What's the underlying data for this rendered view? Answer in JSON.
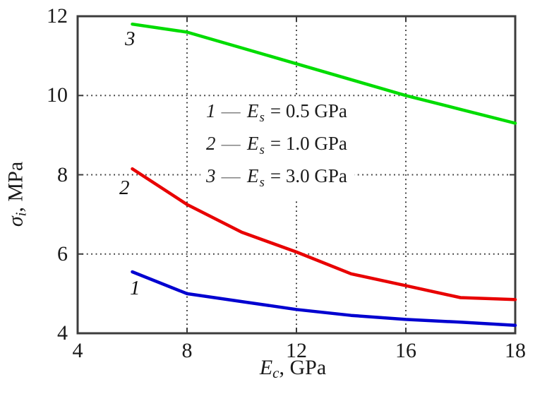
{
  "chart_data": {
    "type": "line",
    "title": "",
    "xlabel_parts": {
      "var": "E",
      "sub": "c",
      "rest": ", GPa"
    },
    "ylabel_parts": {
      "var": "σ",
      "sub": "i",
      "rest": ", MPa"
    },
    "x_ticks": [
      4,
      8,
      12,
      16,
      18
    ],
    "y_ticks": [
      4,
      6,
      8,
      10,
      12
    ],
    "x_gridlines": [
      8,
      12,
      16
    ],
    "y_gridlines": [
      6,
      8,
      10
    ],
    "ylim": [
      4,
      12
    ],
    "axis_layout": {
      "x_ticks_evenly_spaced": true,
      "grid": "dotted",
      "legend_position": "inside-center"
    },
    "x": [
      6,
      8,
      10,
      12,
      14,
      16,
      17,
      18
    ],
    "series": [
      {
        "label": "1",
        "name": "Es = 0.5 GPa",
        "color": "#0000d0",
        "values": [
          5.55,
          5.0,
          4.8,
          4.6,
          4.45,
          4.35,
          4.28,
          4.2
        ]
      },
      {
        "label": "2",
        "name": "Es = 1.0 GPa",
        "color": "#e80000",
        "values": [
          8.15,
          7.25,
          6.55,
          6.05,
          5.5,
          5.2,
          4.9,
          4.85
        ]
      },
      {
        "label": "3",
        "name": "Es = 3.0 GPa",
        "color": "#00dc00",
        "values": [
          11.8,
          11.6,
          11.2,
          10.8,
          10.4,
          10.0,
          9.65,
          9.3
        ]
      }
    ],
    "legend_items": [
      {
        "num": "1",
        "dash": "—",
        "var": "E",
        "sub": "s",
        "rest": "= 0.5 GPa"
      },
      {
        "num": "2",
        "dash": "—",
        "var": "E",
        "sub": "s",
        "rest": "= 1.0 GPa"
      },
      {
        "num": "3",
        "dash": "—",
        "var": "E",
        "sub": "s",
        "rest": "= 3.0 GPa"
      }
    ],
    "frame_color": "#3c3c3c",
    "grid_color": "#3a3a3a"
  }
}
